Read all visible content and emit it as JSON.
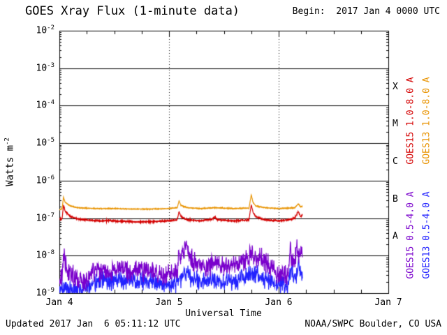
{
  "footer": {
    "updated": "Updated 2017 Jan  6 05:11:12 UTC",
    "credit": "NOAA/SWPC Boulder, CO USA"
  },
  "colors": {
    "axis": "#000000",
    "background": "#ffffff",
    "goes15_long": "#d40000",
    "goes13_long": "#e89300",
    "goes15_short": "#7a00cc",
    "goes13_short": "#2222ff"
  },
  "chart_data": {
    "type": "line",
    "title": "GOES Xray Flux (1-minute data)",
    "begin_label": "Begin:  2017 Jan 4 0000 UTC",
    "xlabel": "Universal Time",
    "ylabel": "Watts m^-2",
    "ylabel_base": "Watts m",
    "ylabel_exp": "-2",
    "x_unit": "hours since 2017 Jan 4 0000 UTC",
    "xlim": [
      0,
      72
    ],
    "x_minor_tick_hours": 6,
    "x_major_ticks": [
      {
        "t": 0,
        "label": "Jan 4"
      },
      {
        "t": 24,
        "label": "Jan 5"
      },
      {
        "t": 48,
        "label": "Jan 6"
      },
      {
        "t": 72,
        "label": "Jan 7"
      }
    ],
    "ylim_exp": [
      -9,
      -2
    ],
    "y_tick_exps": [
      -2,
      -3,
      -4,
      -5,
      -6,
      -7,
      -8,
      -9
    ],
    "grid_exps": [
      -3,
      -4,
      -5,
      -6,
      -7,
      -8
    ],
    "day_boundary_lines": [
      24,
      48
    ],
    "grid": "horizontal solid per decade, dashed vertical at day boundaries",
    "legend_position": "right, rotated",
    "flare_classes": [
      {
        "label": "X",
        "center_exp": -3.5
      },
      {
        "label": "M",
        "center_exp": -4.5
      },
      {
        "label": "C",
        "center_exp": -5.5
      },
      {
        "label": "B",
        "center_exp": -6.5
      },
      {
        "label": "A",
        "center_exp": -7.5
      }
    ],
    "series": [
      {
        "name": "GOES15 1.0-8.0 A",
        "color": "#d40000",
        "noise_decades": 0.02,
        "points": [
          [
            0,
            9.5e-08
          ],
          [
            0.6,
            9.5e-08
          ],
          [
            0.9,
            2.2e-07
          ],
          [
            1.3,
            1.5e-07
          ],
          [
            2.5,
            1.1e-07
          ],
          [
            4,
            9.5e-08
          ],
          [
            8,
            8.5e-08
          ],
          [
            12,
            8.5e-08
          ],
          [
            16,
            8e-08
          ],
          [
            20,
            8e-08
          ],
          [
            24,
            8.5e-08
          ],
          [
            25.8,
            9e-08
          ],
          [
            26.2,
            1.5e-07
          ],
          [
            26.6,
            1.1e-07
          ],
          [
            28,
            9e-08
          ],
          [
            31,
            8.5e-08
          ],
          [
            33.5,
            9.5e-08
          ],
          [
            34,
            1.1e-07
          ],
          [
            34.5,
            9e-08
          ],
          [
            38,
            8.5e-08
          ],
          [
            41.5,
            9e-08
          ],
          [
            42.0,
            2.3e-07
          ],
          [
            42.4,
            1.4e-07
          ],
          [
            43,
            1.1e-07
          ],
          [
            45,
            9e-08
          ],
          [
            48,
            8.5e-08
          ],
          [
            50,
            9e-08
          ],
          [
            51.5,
            1e-07
          ],
          [
            52.3,
            1.5e-07
          ],
          [
            52.8,
            1.1e-07
          ],
          [
            53.2,
            1.2e-07
          ]
        ]
      },
      {
        "name": "GOES13 1.0-8.0 A",
        "color": "#e89300",
        "noise_decades": 0.012,
        "points": [
          [
            0,
            1.7e-07
          ],
          [
            0.6,
            1.8e-07
          ],
          [
            0.9,
            3.6e-07
          ],
          [
            1.3,
            2.6e-07
          ],
          [
            2.5,
            2.1e-07
          ],
          [
            4,
            1.9e-07
          ],
          [
            8,
            1.8e-07
          ],
          [
            12,
            1.8e-07
          ],
          [
            16,
            1.75e-07
          ],
          [
            20,
            1.75e-07
          ],
          [
            24,
            1.8e-07
          ],
          [
            25.8,
            1.9e-07
          ],
          [
            26.2,
            2.9e-07
          ],
          [
            26.6,
            2.2e-07
          ],
          [
            28,
            1.9e-07
          ],
          [
            31,
            1.8e-07
          ],
          [
            34,
            1.9e-07
          ],
          [
            38,
            1.8e-07
          ],
          [
            41.5,
            1.85e-07
          ],
          [
            42.0,
            4.2e-07
          ],
          [
            42.4,
            2.6e-07
          ],
          [
            43,
            2.1e-07
          ],
          [
            45,
            1.9e-07
          ],
          [
            48,
            1.8e-07
          ],
          [
            50,
            1.85e-07
          ],
          [
            51.5,
            1.9e-07
          ],
          [
            52.3,
            2.4e-07
          ],
          [
            52.8,
            2e-07
          ],
          [
            53.2,
            2.1e-07
          ]
        ]
      },
      {
        "name": "GOES15 0.5-4.0 A",
        "color": "#7a00cc",
        "noise_decades": 0.33,
        "points": [
          [
            0,
            2.2e-09
          ],
          [
            0.6,
            2.5e-09
          ],
          [
            0.9,
            1.3e-08
          ],
          [
            1.3,
            5e-09
          ],
          [
            2.5,
            3e-09
          ],
          [
            4,
            2.2e-09
          ],
          [
            6,
            2e-09
          ],
          [
            7,
            3.5e-09
          ],
          [
            9,
            4e-09
          ],
          [
            11,
            3.5e-09
          ],
          [
            13,
            4.5e-09
          ],
          [
            15,
            4e-09
          ],
          [
            17,
            4.5e-09
          ],
          [
            19,
            4e-09
          ],
          [
            21,
            3.5e-09
          ],
          [
            23,
            3e-09
          ],
          [
            24.5,
            3.5e-09
          ],
          [
            25.8,
            4e-09
          ],
          [
            26.2,
            1.1e-08
          ],
          [
            26.7,
            8e-09
          ],
          [
            27.8,
            2.6e-08
          ],
          [
            28.2,
            1.2e-08
          ],
          [
            29,
            8e-09
          ],
          [
            30,
            6e-09
          ],
          [
            32,
            5e-09
          ],
          [
            34,
            6e-09
          ],
          [
            36,
            5e-09
          ],
          [
            38,
            6e-09
          ],
          [
            40,
            7e-09
          ],
          [
            41,
            9e-09
          ],
          [
            42,
            1.1e-08
          ],
          [
            43,
            8e-09
          ],
          [
            44,
            9e-09
          ],
          [
            45,
            7e-09
          ],
          [
            46,
            5e-09
          ],
          [
            47,
            4e-09
          ],
          [
            48,
            3.5e-09
          ],
          [
            49.5,
            3e-09
          ],
          [
            50.3,
            4e-09
          ],
          [
            50.5,
            3e-08
          ],
          [
            50.8,
            7e-09
          ],
          [
            51.5,
            6e-09
          ],
          [
            52.0,
            1.4e-08
          ],
          [
            52.5,
            9e-09
          ],
          [
            53.0,
            1.5e-08
          ],
          [
            53.2,
            1.1e-08
          ]
        ]
      },
      {
        "name": "GOES13 0.5-4.0 A",
        "color": "#2222ff",
        "noise_decades": 0.3,
        "points": [
          [
            0,
            1.3e-09
          ],
          [
            2,
            1.4e-09
          ],
          [
            4,
            1.2e-09
          ],
          [
            6,
            1.5e-09
          ],
          [
            8,
            2e-09
          ],
          [
            10,
            2.2e-09
          ],
          [
            12,
            2e-09
          ],
          [
            14,
            2.2e-09
          ],
          [
            16,
            2e-09
          ],
          [
            18,
            2.2e-09
          ],
          [
            20,
            2e-09
          ],
          [
            22,
            1.8e-09
          ],
          [
            24,
            1.6e-09
          ],
          [
            26,
            2e-09
          ],
          [
            27.8,
            4e-09
          ],
          [
            28.5,
            2.5e-09
          ],
          [
            30,
            2.2e-09
          ],
          [
            32,
            2e-09
          ],
          [
            34,
            2.2e-09
          ],
          [
            36,
            2e-09
          ],
          [
            38,
            2e-09
          ],
          [
            40,
            2.5e-09
          ],
          [
            42,
            3e-09
          ],
          [
            44,
            2.8e-09
          ],
          [
            46,
            2.2e-09
          ],
          [
            48,
            1.8e-09
          ],
          [
            50,
            1.6e-09
          ],
          [
            50.5,
            4e-09
          ],
          [
            51.8,
            2.5e-09
          ],
          [
            52.2,
            5e-09
          ],
          [
            52.8,
            3.5e-09
          ],
          [
            53.2,
            3e-09
          ]
        ]
      }
    ]
  }
}
